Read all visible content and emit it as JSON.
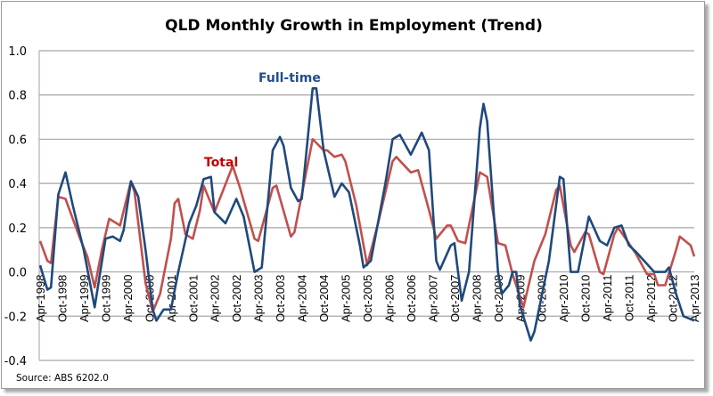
{
  "chart_data": {
    "type": "line",
    "title": "QLD Monthly Growth in Employment (Trend)",
    "xlabel": "",
    "ylabel": "",
    "x_unit": "months since Apr-1998",
    "xlim": [
      0,
      180
    ],
    "ylim": [
      -0.4,
      1.0
    ],
    "yticks": [
      "-0.4",
      "-0.2",
      "0.0",
      "0.2",
      "0.4",
      "0.6",
      "0.8",
      "1.0"
    ],
    "ytick_values": [
      -0.4,
      -0.2,
      0.0,
      0.2,
      0.4,
      0.6,
      0.8,
      1.0
    ],
    "xtick_labels": [
      "Apr-1998",
      "Oct-1998",
      "Apr-1999",
      "Oct-1999",
      "Apr-2000",
      "Oct-2000",
      "Apr-2001",
      "Oct-2001",
      "Apr-2002",
      "Oct-2002",
      "Apr-2003",
      "Oct-2003",
      "Apr-2004",
      "Oct-2004",
      "Apr-2005",
      "Oct-2005",
      "Apr-2006",
      "Oct-2006",
      "Apr-2007",
      "Oct-2007",
      "Apr-2008",
      "Oct-2008",
      "Apr-2009",
      "Oct-2009",
      "Apr-2010",
      "Oct-2010",
      "Apr-2011",
      "Oct-2011",
      "Apr-2012",
      "Oct-2012",
      "Apr-2013"
    ],
    "xtick_step_months": 6,
    "grid": true,
    "legend": "none (inline labels)",
    "series": [
      {
        "name": "Full-time",
        "label": "Full-time",
        "color": "#1F497D",
        "label_color": "#1F4E8C",
        "points": [
          [
            0,
            0.03
          ],
          [
            2,
            -0.08
          ],
          [
            3,
            -0.07
          ],
          [
            5,
            0.35
          ],
          [
            7,
            0.45
          ],
          [
            9,
            0.3
          ],
          [
            12,
            0.1
          ],
          [
            15,
            -0.16
          ],
          [
            18,
            0.15
          ],
          [
            20,
            0.16
          ],
          [
            22,
            0.14
          ],
          [
            23,
            0.19
          ],
          [
            25,
            0.41
          ],
          [
            27,
            0.34
          ],
          [
            29,
            0.1
          ],
          [
            31,
            -0.17
          ],
          [
            32,
            -0.22
          ],
          [
            34,
            -0.17
          ],
          [
            36,
            -0.17
          ],
          [
            38,
            0.0
          ],
          [
            41,
            0.22
          ],
          [
            43,
            0.3
          ],
          [
            45,
            0.42
          ],
          [
            47,
            0.43
          ],
          [
            48,
            0.27
          ],
          [
            51,
            0.22
          ],
          [
            54,
            0.33
          ],
          [
            56,
            0.25
          ],
          [
            59,
            0.0
          ],
          [
            61,
            0.02
          ],
          [
            64,
            0.55
          ],
          [
            66,
            0.61
          ],
          [
            67,
            0.57
          ],
          [
            69,
            0.38
          ],
          [
            71,
            0.32
          ],
          [
            72,
            0.33
          ],
          [
            75,
            0.83
          ],
          [
            76,
            0.83
          ],
          [
            78,
            0.55
          ],
          [
            81,
            0.34
          ],
          [
            83,
            0.4
          ],
          [
            85,
            0.36
          ],
          [
            88,
            0.12
          ],
          [
            89,
            0.02
          ],
          [
            91,
            0.05
          ],
          [
            95,
            0.4
          ],
          [
            97,
            0.6
          ],
          [
            99,
            0.62
          ],
          [
            102,
            0.53
          ],
          [
            105,
            0.63
          ],
          [
            107,
            0.55
          ],
          [
            109,
            0.05
          ],
          [
            110,
            0.01
          ],
          [
            113,
            0.12
          ],
          [
            114,
            0.13
          ],
          [
            116,
            -0.13
          ],
          [
            118,
            0.0
          ],
          [
            121,
            0.65
          ],
          [
            122,
            0.76
          ],
          [
            123,
            0.68
          ],
          [
            126,
            0.0
          ],
          [
            127,
            -0.1
          ],
          [
            129,
            -0.06
          ],
          [
            130,
            0.0
          ],
          [
            131,
            0.0
          ],
          [
            132,
            -0.15
          ],
          [
            135,
            -0.31
          ],
          [
            136,
            -0.27
          ],
          [
            140,
            0.05
          ],
          [
            143,
            0.43
          ],
          [
            144,
            0.42
          ],
          [
            146,
            0.0
          ],
          [
            148,
            0.0
          ],
          [
            151,
            0.25
          ],
          [
            154,
            0.14
          ],
          [
            156,
            0.12
          ],
          [
            158,
            0.2
          ],
          [
            160,
            0.21
          ],
          [
            162,
            0.12
          ],
          [
            164,
            0.09
          ],
          [
            169,
            0.0
          ],
          [
            172,
            0.0
          ],
          [
            173,
            0.02
          ],
          [
            175,
            -0.1
          ],
          [
            177,
            -0.2
          ],
          [
            180,
            -0.22
          ]
        ]
      },
      {
        "name": "Total",
        "label": "Total",
        "color": "#C0504D",
        "label_color": "#C00000",
        "points": [
          [
            0,
            0.14
          ],
          [
            2,
            0.05
          ],
          [
            3,
            0.04
          ],
          [
            5,
            0.34
          ],
          [
            7,
            0.33
          ],
          [
            11,
            0.15
          ],
          [
            13,
            0.07
          ],
          [
            15,
            -0.07
          ],
          [
            17,
            0.1
          ],
          [
            19,
            0.24
          ],
          [
            20,
            0.23
          ],
          [
            22,
            0.21
          ],
          [
            25,
            0.41
          ],
          [
            26,
            0.36
          ],
          [
            29,
            -0.05
          ],
          [
            31,
            -0.18
          ],
          [
            33,
            -0.1
          ],
          [
            36,
            0.15
          ],
          [
            37,
            0.31
          ],
          [
            38,
            0.33
          ],
          [
            40,
            0.17
          ],
          [
            42,
            0.15
          ],
          [
            44,
            0.28
          ],
          [
            45,
            0.39
          ],
          [
            48,
            0.27
          ],
          [
            53,
            0.48
          ],
          [
            55,
            0.38
          ],
          [
            59,
            0.15
          ],
          [
            60,
            0.14
          ],
          [
            64,
            0.38
          ],
          [
            65,
            0.39
          ],
          [
            69,
            0.16
          ],
          [
            70,
            0.18
          ],
          [
            75,
            0.6
          ],
          [
            78,
            0.55
          ],
          [
            79,
            0.55
          ],
          [
            81,
            0.52
          ],
          [
            83,
            0.53
          ],
          [
            84,
            0.5
          ],
          [
            87,
            0.3
          ],
          [
            90,
            0.03
          ],
          [
            93,
            0.22
          ],
          [
            97,
            0.5
          ],
          [
            98,
            0.52
          ],
          [
            102,
            0.45
          ],
          [
            104,
            0.46
          ],
          [
            107,
            0.28
          ],
          [
            109,
            0.15
          ],
          [
            112,
            0.21
          ],
          [
            113,
            0.21
          ],
          [
            115,
            0.14
          ],
          [
            117,
            0.13
          ],
          [
            121,
            0.45
          ],
          [
            123,
            0.43
          ],
          [
            126,
            0.13
          ],
          [
            128,
            0.12
          ],
          [
            130,
            -0.01
          ],
          [
            133,
            -0.16
          ],
          [
            136,
            0.05
          ],
          [
            139,
            0.17
          ],
          [
            142,
            0.37
          ],
          [
            143,
            0.39
          ],
          [
            146,
            0.12
          ],
          [
            147,
            0.09
          ],
          [
            150,
            0.18
          ],
          [
            151,
            0.17
          ],
          [
            154,
            0.0
          ],
          [
            155,
            -0.01
          ],
          [
            158,
            0.17
          ],
          [
            159,
            0.2
          ],
          [
            162,
            0.13
          ],
          [
            164,
            0.08
          ],
          [
            167,
            -0.01
          ],
          [
            169,
            -0.01
          ],
          [
            170,
            -0.06
          ],
          [
            172,
            -0.06
          ],
          [
            175,
            0.1
          ],
          [
            176,
            0.16
          ],
          [
            179,
            0.12
          ],
          [
            180,
            0.07
          ]
        ]
      }
    ],
    "source": "Source: ABS 6202.0"
  }
}
